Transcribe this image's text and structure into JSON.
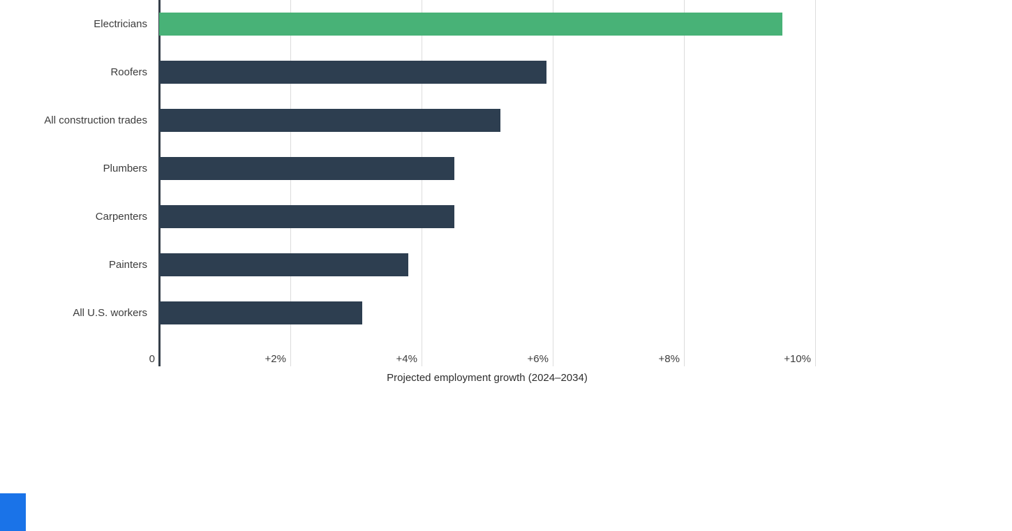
{
  "chart_data": {
    "type": "bar",
    "orientation": "horizontal",
    "title": "",
    "xlabel": "Projected employment growth (2024–2034)",
    "ylabel": "",
    "categories": [
      "Electricians",
      "Roofers",
      "All construction trades",
      "Plumbers",
      "Carpenters",
      "Painters",
      "All U.S. workers"
    ],
    "values": [
      9.5,
      5.9,
      5.2,
      4.5,
      4.5,
      3.8,
      3.1
    ],
    "xlim": [
      0,
      10
    ],
    "x_ticks": [
      {
        "value": 0,
        "label": "0"
      },
      {
        "value": 2,
        "label": "+2%"
      },
      {
        "value": 4,
        "label": "+4%"
      },
      {
        "value": 6,
        "label": "+6%"
      },
      {
        "value": 8,
        "label": "+8%"
      },
      {
        "value": 10,
        "label": "+10%"
      }
    ],
    "grid": "vertical",
    "legend": "none",
    "highlight_index": 0,
    "colors": {
      "highlight_bar": "#48b277",
      "default_bar": "#2d3e50",
      "gridline": "#dcdcdc",
      "zero_axis": "#353f49",
      "label_text": "#3c3c3c"
    }
  },
  "decor": {
    "corner_block_color": "#1a73e8"
  }
}
